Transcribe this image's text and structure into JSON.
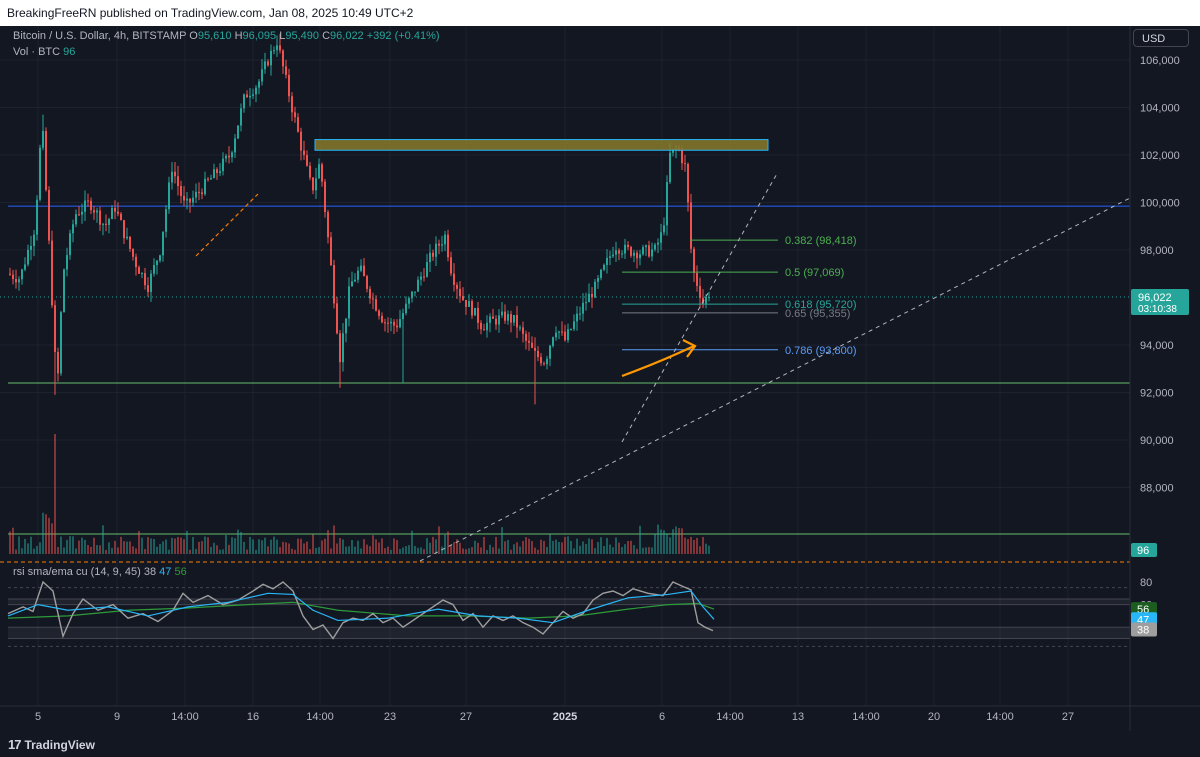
{
  "header": {
    "published": "BreakingFreeRN published on TradingView.com, Jan 08, 2025 10:49 UTC+2"
  },
  "legend": {
    "symbol": "Bitcoin / U.S. Dollar, 4h, BITSTAMP",
    "o_label": "O",
    "o_value": "95,610",
    "h_label": "H",
    "h_value": "96,095",
    "l_label": "L",
    "l_value": "95,490",
    "c_label": "C",
    "c_value": "96,022",
    "change": "+392 (+0.41%)",
    "vol_label": "Vol · BTC",
    "vol_value": "96"
  },
  "currency_button": "USD",
  "rsi_legend": {
    "label": "rsi sma/ema cu (14, 9, 45)",
    "v1": "38",
    "v2": "47",
    "v3": "56"
  },
  "footer": {
    "brand": "TradingView",
    "brand_mark": "17"
  },
  "colors": {
    "bg": "#131722",
    "up": "#26a69a",
    "down": "#ef5350",
    "fib_green": "#4caf50",
    "fib_teal": "#26a69a",
    "fib_blue": "#5b9cf6",
    "resistance_line": "#2962ff",
    "support_line": "#66bb6a",
    "supply_zone": "#8a7a2b",
    "arrow": "#ff9800",
    "rsi_raw": "#9e9e9e",
    "rsi_sma": "#29b6f6",
    "rsi_ema": "#2e9b3a"
  },
  "chart_data": {
    "type": "candlestick",
    "symbol": "Bitcoin / U.S. Dollar",
    "interval": "4h",
    "exchange": "BITSTAMP",
    "y_ticks": [
      "106,000",
      "104,000",
      "102,000",
      "100,000",
      "98,000",
      "94,000",
      "92,000",
      "90,000",
      "88,000"
    ],
    "y_range": [
      86700,
      107200
    ],
    "x_ticks": [
      "5",
      "9",
      "14:00",
      "16",
      "14:00",
      "23",
      "27",
      "2025",
      "6",
      "14:00",
      "13",
      "14:00",
      "20",
      "14:00",
      "27"
    ],
    "price_label": {
      "value": "96,022",
      "countdown": "03:10:38"
    },
    "volume_label": "96",
    "price_series": [
      [
        0,
        96500
      ],
      [
        8,
        97000
      ],
      [
        20,
        96800
      ],
      [
        35,
        99000
      ],
      [
        42,
        103500
      ],
      [
        50,
        97500
      ],
      [
        57,
        91900
      ],
      [
        63,
        97000
      ],
      [
        75,
        99500
      ],
      [
        90,
        100000
      ],
      [
        105,
        99000
      ],
      [
        115,
        99800
      ],
      [
        125,
        98600
      ],
      [
        135,
        97500
      ],
      [
        148,
        96500
      ],
      [
        160,
        98000
      ],
      [
        172,
        101500
      ],
      [
        185,
        99800
      ],
      [
        200,
        100500
      ],
      [
        215,
        101200
      ],
      [
        230,
        102000
      ],
      [
        245,
        104500
      ],
      [
        258,
        105000
      ],
      [
        268,
        106000
      ],
      [
        277,
        106800
      ],
      [
        284,
        105500
      ],
      [
        292,
        104000
      ],
      [
        302,
        102200
      ],
      [
        312,
        100500
      ],
      [
        320,
        101700
      ],
      [
        330,
        97700
      ],
      [
        340,
        93500
      ],
      [
        350,
        96500
      ],
      [
        360,
        97200
      ],
      [
        372,
        96000
      ],
      [
        384,
        95000
      ],
      [
        396,
        94800
      ],
      [
        405,
        95500
      ],
      [
        420,
        96800
      ],
      [
        432,
        97800
      ],
      [
        445,
        98600
      ],
      [
        452,
        97000
      ],
      [
        462,
        96000
      ],
      [
        472,
        95500
      ],
      [
        482,
        94800
      ],
      [
        492,
        95000
      ],
      [
        505,
        95200
      ],
      [
        515,
        95000
      ],
      [
        525,
        94200
      ],
      [
        535,
        93600
      ],
      [
        545,
        93300
      ],
      [
        555,
        94800
      ],
      [
        565,
        94200
      ],
      [
        575,
        95000
      ],
      [
        585,
        95800
      ],
      [
        595,
        96400
      ],
      [
        605,
        97300
      ],
      [
        615,
        98200
      ],
      [
        625,
        98000
      ],
      [
        640,
        97900
      ],
      [
        655,
        98000
      ],
      [
        663,
        98800
      ],
      [
        670,
        102000
      ],
      [
        678,
        102300
      ],
      [
        686,
        101400
      ],
      [
        690,
        98400
      ],
      [
        694,
        97000
      ],
      [
        700,
        96200
      ],
      [
        706,
        95400
      ],
      [
        709,
        96022
      ]
    ],
    "annotations": {
      "fibonacci": [
        {
          "label": "0.382 (98,418)",
          "level": 98418
        },
        {
          "label": "0.5 (97,069)",
          "level": 97069
        },
        {
          "label": "0.618 (95,720)",
          "level": 95720
        },
        {
          "label": "0.65 (95,355)",
          "level": 95355
        },
        {
          "label": "0.786 (93,800)",
          "level": 93800
        }
      ],
      "resistance_level": 99850,
      "support_level": 92400,
      "supply_zone": [
        102200,
        102650
      ]
    },
    "rsi": {
      "y_ticks": [
        "80",
        "60"
      ],
      "y_range": [
        17,
        90
      ],
      "values": {
        "rsi": "38",
        "sma": "47",
        "ema": "56"
      },
      "rsi_series": [
        [
          0,
          52
        ],
        [
          15,
          58
        ],
        [
          25,
          54
        ],
        [
          35,
          80
        ],
        [
          45,
          72
        ],
        [
          55,
          32
        ],
        [
          65,
          52
        ],
        [
          75,
          65
        ],
        [
          90,
          55
        ],
        [
          105,
          60
        ],
        [
          120,
          48
        ],
        [
          135,
          52
        ],
        [
          150,
          45
        ],
        [
          165,
          55
        ],
        [
          175,
          70
        ],
        [
          185,
          62
        ],
        [
          200,
          68
        ],
        [
          215,
          60
        ],
        [
          230,
          64
        ],
        [
          245,
          72
        ],
        [
          255,
          78
        ],
        [
          265,
          74
        ],
        [
          275,
          80
        ],
        [
          285,
          72
        ],
        [
          295,
          50
        ],
        [
          305,
          38
        ],
        [
          315,
          42
        ],
        [
          325,
          30
        ],
        [
          335,
          44
        ],
        [
          345,
          48
        ],
        [
          355,
          46
        ],
        [
          365,
          52
        ],
        [
          375,
          44
        ],
        [
          385,
          48
        ],
        [
          395,
          40
        ],
        [
          405,
          46
        ],
        [
          420,
          55
        ],
        [
          435,
          64
        ],
        [
          445,
          60
        ],
        [
          455,
          46
        ],
        [
          465,
          52
        ],
        [
          475,
          40
        ],
        [
          485,
          50
        ],
        [
          495,
          46
        ],
        [
          505,
          50
        ],
        [
          515,
          44
        ],
        [
          525,
          40
        ],
        [
          535,
          34
        ],
        [
          545,
          44
        ],
        [
          555,
          54
        ],
        [
          565,
          48
        ],
        [
          575,
          52
        ],
        [
          585,
          64
        ],
        [
          595,
          70
        ],
        [
          605,
          72
        ],
        [
          615,
          68
        ],
        [
          625,
          74
        ],
        [
          640,
          70
        ],
        [
          655,
          68
        ],
        [
          665,
          80
        ],
        [
          675,
          76
        ],
        [
          683,
          73
        ],
        [
          690,
          44
        ],
        [
          697,
          40
        ],
        [
          705,
          37
        ]
      ],
      "sma_series": [
        [
          0,
          50
        ],
        [
          30,
          60
        ],
        [
          60,
          55
        ],
        [
          100,
          58
        ],
        [
          140,
          50
        ],
        [
          180,
          58
        ],
        [
          220,
          62
        ],
        [
          260,
          70
        ],
        [
          285,
          69
        ],
        [
          305,
          55
        ],
        [
          330,
          46
        ],
        [
          380,
          48
        ],
        [
          430,
          56
        ],
        [
          470,
          50
        ],
        [
          510,
          48
        ],
        [
          545,
          44
        ],
        [
          580,
          55
        ],
        [
          620,
          66
        ],
        [
          660,
          69
        ],
        [
          683,
          72
        ],
        [
          695,
          58
        ],
        [
          706,
          47
        ]
      ],
      "ema_series": [
        [
          0,
          48
        ],
        [
          60,
          50
        ],
        [
          120,
          55
        ],
        [
          180,
          57
        ],
        [
          240,
          60
        ],
        [
          285,
          62
        ],
        [
          330,
          55
        ],
        [
          400,
          50
        ],
        [
          460,
          50
        ],
        [
          520,
          48
        ],
        [
          570,
          50
        ],
        [
          620,
          56
        ],
        [
          660,
          60
        ],
        [
          690,
          61
        ],
        [
          706,
          56
        ]
      ]
    }
  }
}
